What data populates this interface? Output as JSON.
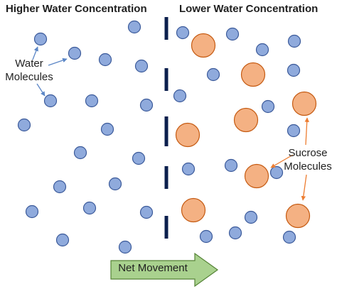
{
  "headings": {
    "left": "Higher Water Concentration",
    "right": "Lower Water Concentration"
  },
  "labels": {
    "water_line1": "Water",
    "water_line2": "Molecules",
    "sucrose_line1": "Sucrose",
    "sucrose_line2": "Molecules"
  },
  "arrow": {
    "label": "Net Movement"
  },
  "colors": {
    "water_fill": "#8faadc",
    "water_stroke": "#3b5a9a",
    "sucrose_fill": "#f4b183",
    "sucrose_stroke": "#c55a11",
    "membrane": "#0b1f4d",
    "arrow_fill": "#a9d18e",
    "arrow_stroke": "#548235",
    "pointer_water": "#5b86c6",
    "pointer_sucrose": "#ed7d31"
  }
}
